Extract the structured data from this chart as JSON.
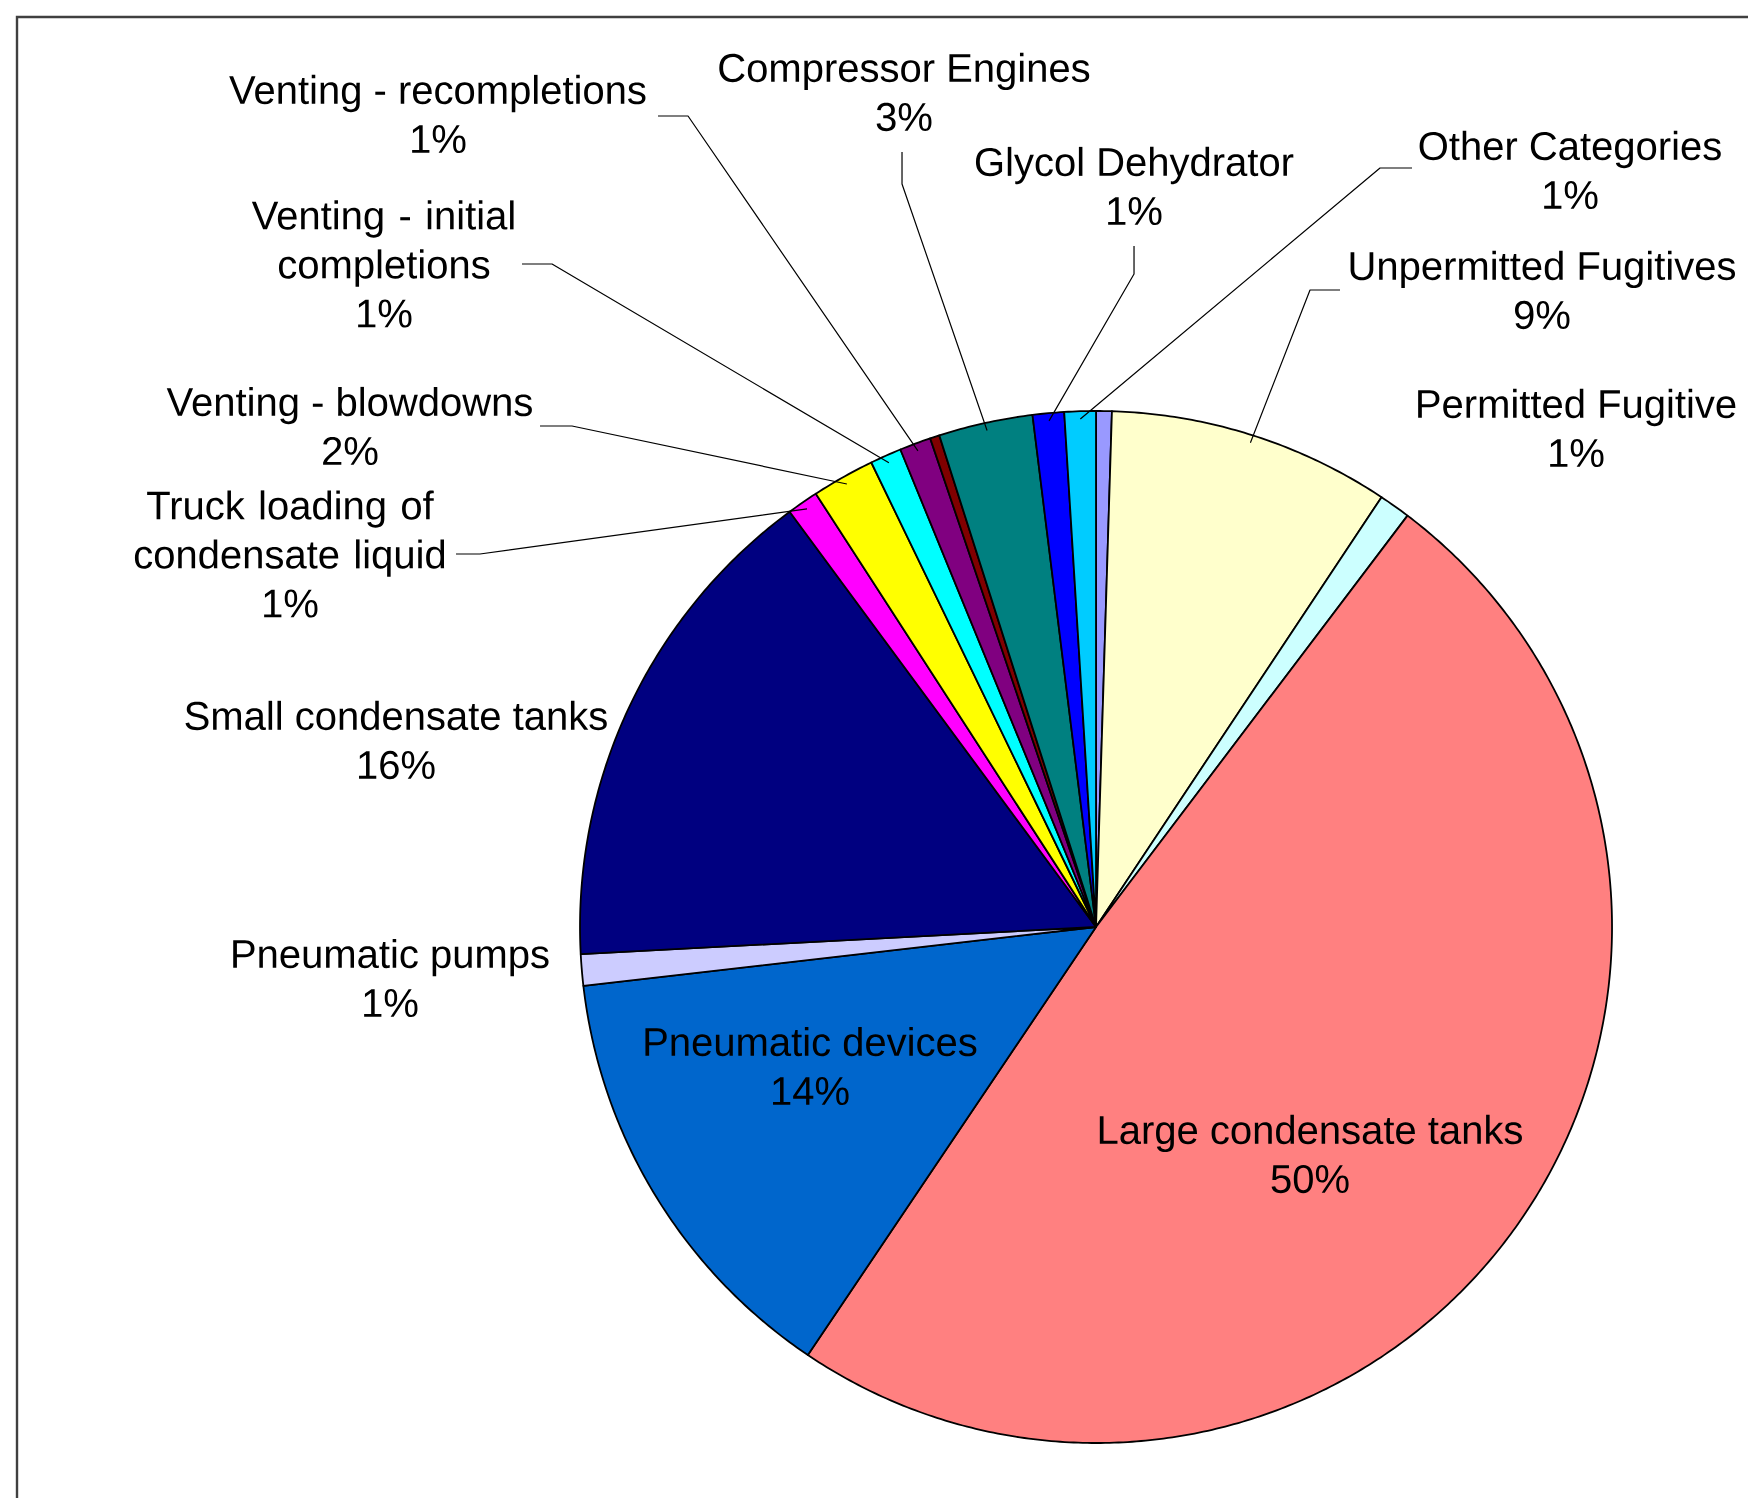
{
  "chart_data": {
    "type": "pie",
    "categories": [
      null,
      "Unpermitted Fugitives",
      "Permitted Fugitive",
      "Large condensate tanks",
      "Pneumatic devices",
      "Pneumatic pumps",
      "Small condensate tanks",
      "Truck loading of condensate liquid",
      "Venting - blowdowns",
      "Venting - initial completions",
      "Venting - recompletions",
      null,
      "Compressor Engines",
      "Glycol Dehydrator",
      "Other Categories"
    ],
    "values": [
      0.5,
      9,
      1,
      50,
      14,
      1,
      16,
      1,
      2,
      1,
      1,
      0.3,
      3,
      1,
      1
    ],
    "value_labels": [
      null,
      "9%",
      "1%",
      "50%",
      "14%",
      "1%",
      "16%",
      "1%",
      "2%",
      "1%",
      "1%",
      null,
      "3%",
      "1%",
      "1%"
    ],
    "colors": [
      "#9999ff",
      "#ffffcc",
      "#ccffff",
      "#ff8080",
      "#0066cc",
      "#ccccff",
      "#000080",
      "#ff00ff",
      "#ffff00",
      "#00ffff",
      "#800080",
      "#800000",
      "#008080",
      "#0000ff",
      "#00ccff"
    ]
  }
}
